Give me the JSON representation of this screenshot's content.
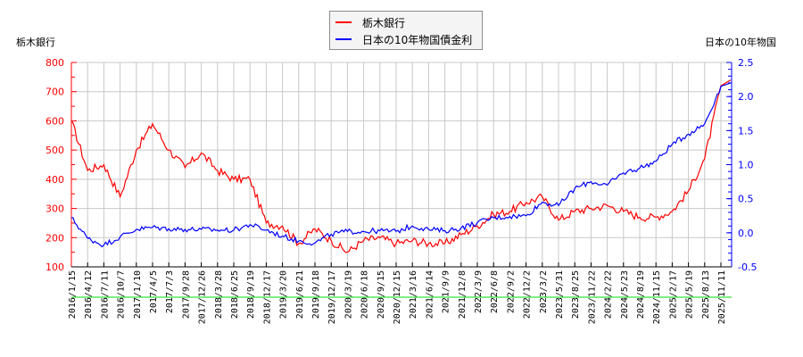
{
  "chart_data": {
    "type": "line",
    "title": "",
    "left_axis_title": "栃木銀行",
    "right_axis_title": "日本の10年物国",
    "left_axis": {
      "min": 100,
      "max": 800,
      "ticks": [
        100,
        200,
        300,
        400,
        500,
        600,
        700,
        800
      ],
      "color": "#ff0000"
    },
    "right_axis": {
      "min": -0.5,
      "max": 2.5,
      "ticks": [
        "-0.5",
        "0.0",
        "0.5",
        "1.0",
        "1.5",
        "2.0",
        "2.5"
      ],
      "color": "#0000ff"
    },
    "grid": true,
    "legend_position": "top-center",
    "categories": [
      "2016/1/15",
      "2016/4/12",
      "2016/7/11",
      "2016/10/7",
      "2017/1/10",
      "2017/4/5",
      "2017/7/3",
      "2017/9/28",
      "2017/12/26",
      "2018/3/28",
      "2018/6/25",
      "2018/9/19",
      "2018/12/17",
      "2019/3/20",
      "2019/6/21",
      "2019/9/18",
      "2019/12/17",
      "2020/3/19",
      "2020/6/18",
      "2020/9/15",
      "2020/12/15",
      "2021/3/16",
      "2021/6/14",
      "2021/9/9",
      "2021/12/8",
      "2022/3/9",
      "2022/6/8",
      "2022/9/2",
      "2022/12/2",
      "2023/3/2",
      "2023/5/31",
      "2023/8/25",
      "2023/11/22",
      "2024/2/22",
      "2024/5/23",
      "2024/8/19",
      "2024/11/15",
      "2025/2/17",
      "2025/5/19",
      "2025/8/13",
      "2025/11/11"
    ],
    "series": [
      {
        "name": "栃木銀行",
        "axis": "left",
        "color": "#ff0000",
        "values": [
          600,
          430,
          450,
          340,
          500,
          590,
          500,
          440,
          490,
          430,
          400,
          400,
          250,
          240,
          180,
          230,
          190,
          150,
          190,
          200,
          180,
          190,
          180,
          180,
          210,
          240,
          280,
          290,
          320,
          340,
          260,
          290,
          300,
          310,
          290,
          270,
          270,
          290,
          360,
          470,
          720
        ]
      },
      {
        "name": "日本の10年物国債金利",
        "axis": "right",
        "color": "#0000ff",
        "values": [
          0.22,
          -0.08,
          -0.18,
          -0.06,
          0.05,
          0.08,
          0.06,
          0.05,
          0.05,
          0.04,
          0.04,
          0.12,
          0.04,
          -0.05,
          -0.12,
          -0.15,
          -0.02,
          0.02,
          0.02,
          0.03,
          0.02,
          0.1,
          0.05,
          0.03,
          0.07,
          0.15,
          0.22,
          0.24,
          0.25,
          0.45,
          0.4,
          0.65,
          0.75,
          0.7,
          0.88,
          0.95,
          1.05,
          1.3,
          1.45,
          1.6,
          2.15
        ]
      }
    ]
  },
  "legend": {
    "items": [
      {
        "label": "栃木銀行",
        "color": "#ff0000"
      },
      {
        "label": "日本の10年物国債金利",
        "color": "#0000ff"
      }
    ]
  }
}
